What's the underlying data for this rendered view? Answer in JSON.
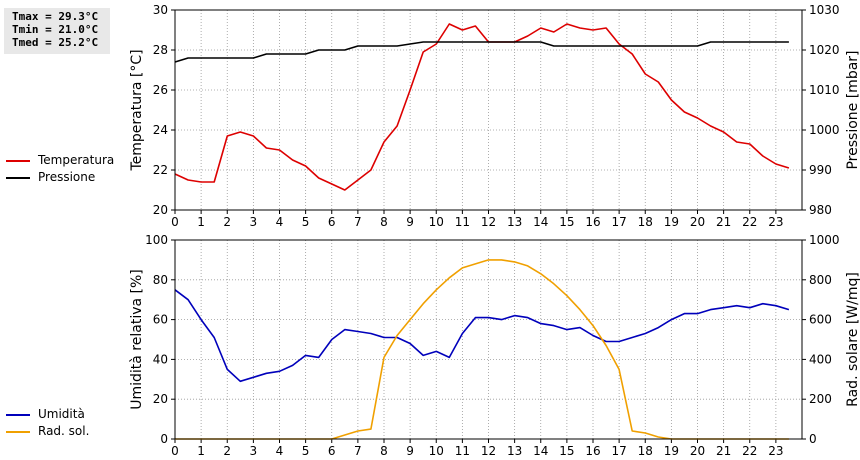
{
  "stats": {
    "tmax": "Tmax = 29.3°C",
    "tmin": "Tmin = 21.0°C",
    "tmed": "Tmed = 25.2°C"
  },
  "colors": {
    "temperature": "#dd0000",
    "pressure": "#000000",
    "humidity": "#0000bb",
    "radiation": "#f0a000",
    "grid": "#999999"
  },
  "chart_data": [
    {
      "type": "line",
      "x_ticks": [
        "0",
        "1",
        "2",
        "3",
        "4",
        "5",
        "6",
        "7",
        "8",
        "9",
        "10",
        "11",
        "12",
        "13",
        "14",
        "15",
        "16",
        "17",
        "18",
        "19",
        "20",
        "21",
        "22",
        "23"
      ],
      "xlim": [
        0,
        24
      ],
      "ylabel": "Temperatura [°C]",
      "ylabel_right": "Pressione [mbar]",
      "ylim": [
        20,
        30
      ],
      "ylim_right": [
        980,
        1030
      ],
      "y_ticks": [
        "20",
        "22",
        "24",
        "26",
        "28",
        "30"
      ],
      "y_ticks_right": [
        "980",
        "990",
        "1000",
        "1010",
        "1020",
        "1030"
      ],
      "grid": true,
      "legend": [
        "Temperatura",
        "Pressione"
      ],
      "series": [
        {
          "name": "Temperatura",
          "axis": "left",
          "x": [
            0,
            0.5,
            1,
            1.5,
            2,
            2.5,
            3,
            3.5,
            4,
            4.5,
            5,
            5.5,
            6,
            6.5,
            7,
            7.5,
            8,
            8.5,
            9,
            9.5,
            10,
            10.5,
            11,
            11.5,
            12,
            12.5,
            13,
            13.5,
            14,
            14.5,
            15,
            15.5,
            16,
            16.5,
            17,
            17.5,
            18,
            18.5,
            19,
            19.5,
            20,
            20.5,
            21,
            21.5,
            22,
            22.5,
            23,
            23.5
          ],
          "y": [
            21.8,
            21.5,
            21.4,
            21.4,
            23.7,
            23.9,
            23.7,
            23.1,
            23.0,
            22.5,
            22.2,
            21.6,
            21.3,
            21.0,
            21.5,
            22.0,
            23.4,
            24.2,
            26.0,
            27.9,
            28.3,
            29.3,
            29.0,
            29.2,
            28.4,
            28.4,
            28.4,
            28.7,
            29.1,
            28.9,
            29.3,
            29.1,
            29.0,
            29.1,
            28.3,
            27.8,
            26.8,
            26.4,
            25.5,
            24.9,
            24.6,
            24.2,
            23.9,
            23.4,
            23.3,
            22.7,
            22.3,
            22.1
          ]
        },
        {
          "name": "Pressione",
          "axis": "right",
          "x": [
            0,
            0.5,
            3,
            3.5,
            5,
            5.5,
            6.5,
            7,
            8.5,
            9,
            9.5,
            14,
            14.5,
            20,
            20.5,
            23.5
          ],
          "y": [
            1017,
            1018,
            1018,
            1019,
            1019,
            1020,
            1020,
            1021,
            1021,
            1021.5,
            1022,
            1022,
            1021,
            1021,
            1022,
            1022
          ]
        }
      ]
    },
    {
      "type": "line",
      "x_ticks": [
        "0",
        "1",
        "2",
        "3",
        "4",
        "5",
        "6",
        "7",
        "8",
        "9",
        "10",
        "11",
        "12",
        "13",
        "14",
        "15",
        "16",
        "17",
        "18",
        "19",
        "20",
        "21",
        "22",
        "23"
      ],
      "xlim": [
        0,
        24
      ],
      "ylabel": "Umidità relativa [%]",
      "ylabel_right": "Rad. solare [W/mq]",
      "ylim": [
        0,
        100
      ],
      "ylim_right": [
        0,
        1000
      ],
      "y_ticks": [
        "0",
        "20",
        "40",
        "60",
        "80",
        "100"
      ],
      "y_ticks_right": [
        "0",
        "200",
        "400",
        "600",
        "800",
        "1000"
      ],
      "grid": true,
      "legend": [
        "Umidità",
        "Rad. sol."
      ],
      "series": [
        {
          "name": "Umidità",
          "axis": "left",
          "x": [
            0,
            0.5,
            1,
            1.5,
            2,
            2.5,
            3,
            3.5,
            4,
            4.5,
            5,
            5.5,
            6,
            6.5,
            7,
            7.5,
            8,
            8.5,
            9,
            9.5,
            10,
            10.5,
            11,
            11.5,
            12,
            12.5,
            13,
            13.5,
            14,
            14.5,
            15,
            15.5,
            16,
            16.5,
            17,
            17.5,
            18,
            18.5,
            19,
            19.5,
            20,
            20.5,
            21,
            21.5,
            22,
            22.5,
            23,
            23.5
          ],
          "y": [
            75,
            70,
            60,
            51,
            35,
            29,
            31,
            33,
            34,
            37,
            42,
            41,
            50,
            55,
            54,
            53,
            51,
            51,
            48,
            42,
            44,
            41,
            53,
            61,
            61,
            60,
            62,
            61,
            58,
            57,
            55,
            56,
            52,
            49,
            49,
            51,
            53,
            56,
            60,
            63,
            63,
            65,
            66,
            67,
            66,
            68,
            67,
            65
          ]
        },
        {
          "name": "Rad. sol.",
          "axis": "right",
          "x": [
            0,
            6,
            6.5,
            7,
            7.5,
            8,
            8.5,
            9,
            9.5,
            10,
            10.5,
            11,
            11.5,
            12,
            12.5,
            13,
            13.5,
            14,
            14.5,
            15,
            15.5,
            16,
            16.5,
            17,
            17.5,
            18,
            18.5,
            19,
            23.5
          ],
          "y": [
            0,
            0,
            20,
            40,
            50,
            410,
            520,
            600,
            680,
            750,
            810,
            860,
            880,
            900,
            900,
            890,
            870,
            830,
            780,
            720,
            650,
            570,
            470,
            350,
            40,
            30,
            10,
            0,
            0
          ]
        }
      ]
    }
  ]
}
